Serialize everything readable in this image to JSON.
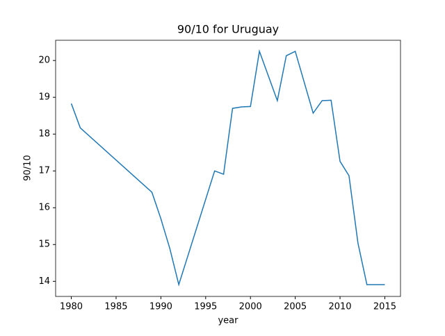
{
  "chart_data": {
    "type": "line",
    "title": "90/10 for Uruguay",
    "x_label": "year",
    "y_label": "90/10",
    "x": [
      1980,
      1981,
      1989,
      1990,
      1991,
      1992,
      1996,
      1997,
      1998,
      1999,
      2000,
      2001,
      2003,
      2004,
      2005,
      2007,
      2008,
      2009,
      2010,
      2011,
      2012,
      2013,
      2015
    ],
    "series": [
      {
        "name": "90/10",
        "color": "#1f77b4",
        "values": [
          18.83,
          18.17,
          16.42,
          15.7,
          14.89,
          13.91,
          17.0,
          16.91,
          18.7,
          18.74,
          18.75,
          20.25,
          18.91,
          20.13,
          20.25,
          18.57,
          18.91,
          18.92,
          17.26,
          16.87,
          15.04,
          13.91,
          13.91
        ]
      }
    ],
    "xlim": [
      1978.25,
      2016.75
    ],
    "ylim": [
      13.59,
      20.55
    ],
    "xticks": [
      1980,
      1985,
      1990,
      1995,
      2000,
      2005,
      2010,
      2015
    ],
    "yticks": [
      14,
      15,
      16,
      17,
      18,
      19,
      20
    ]
  }
}
